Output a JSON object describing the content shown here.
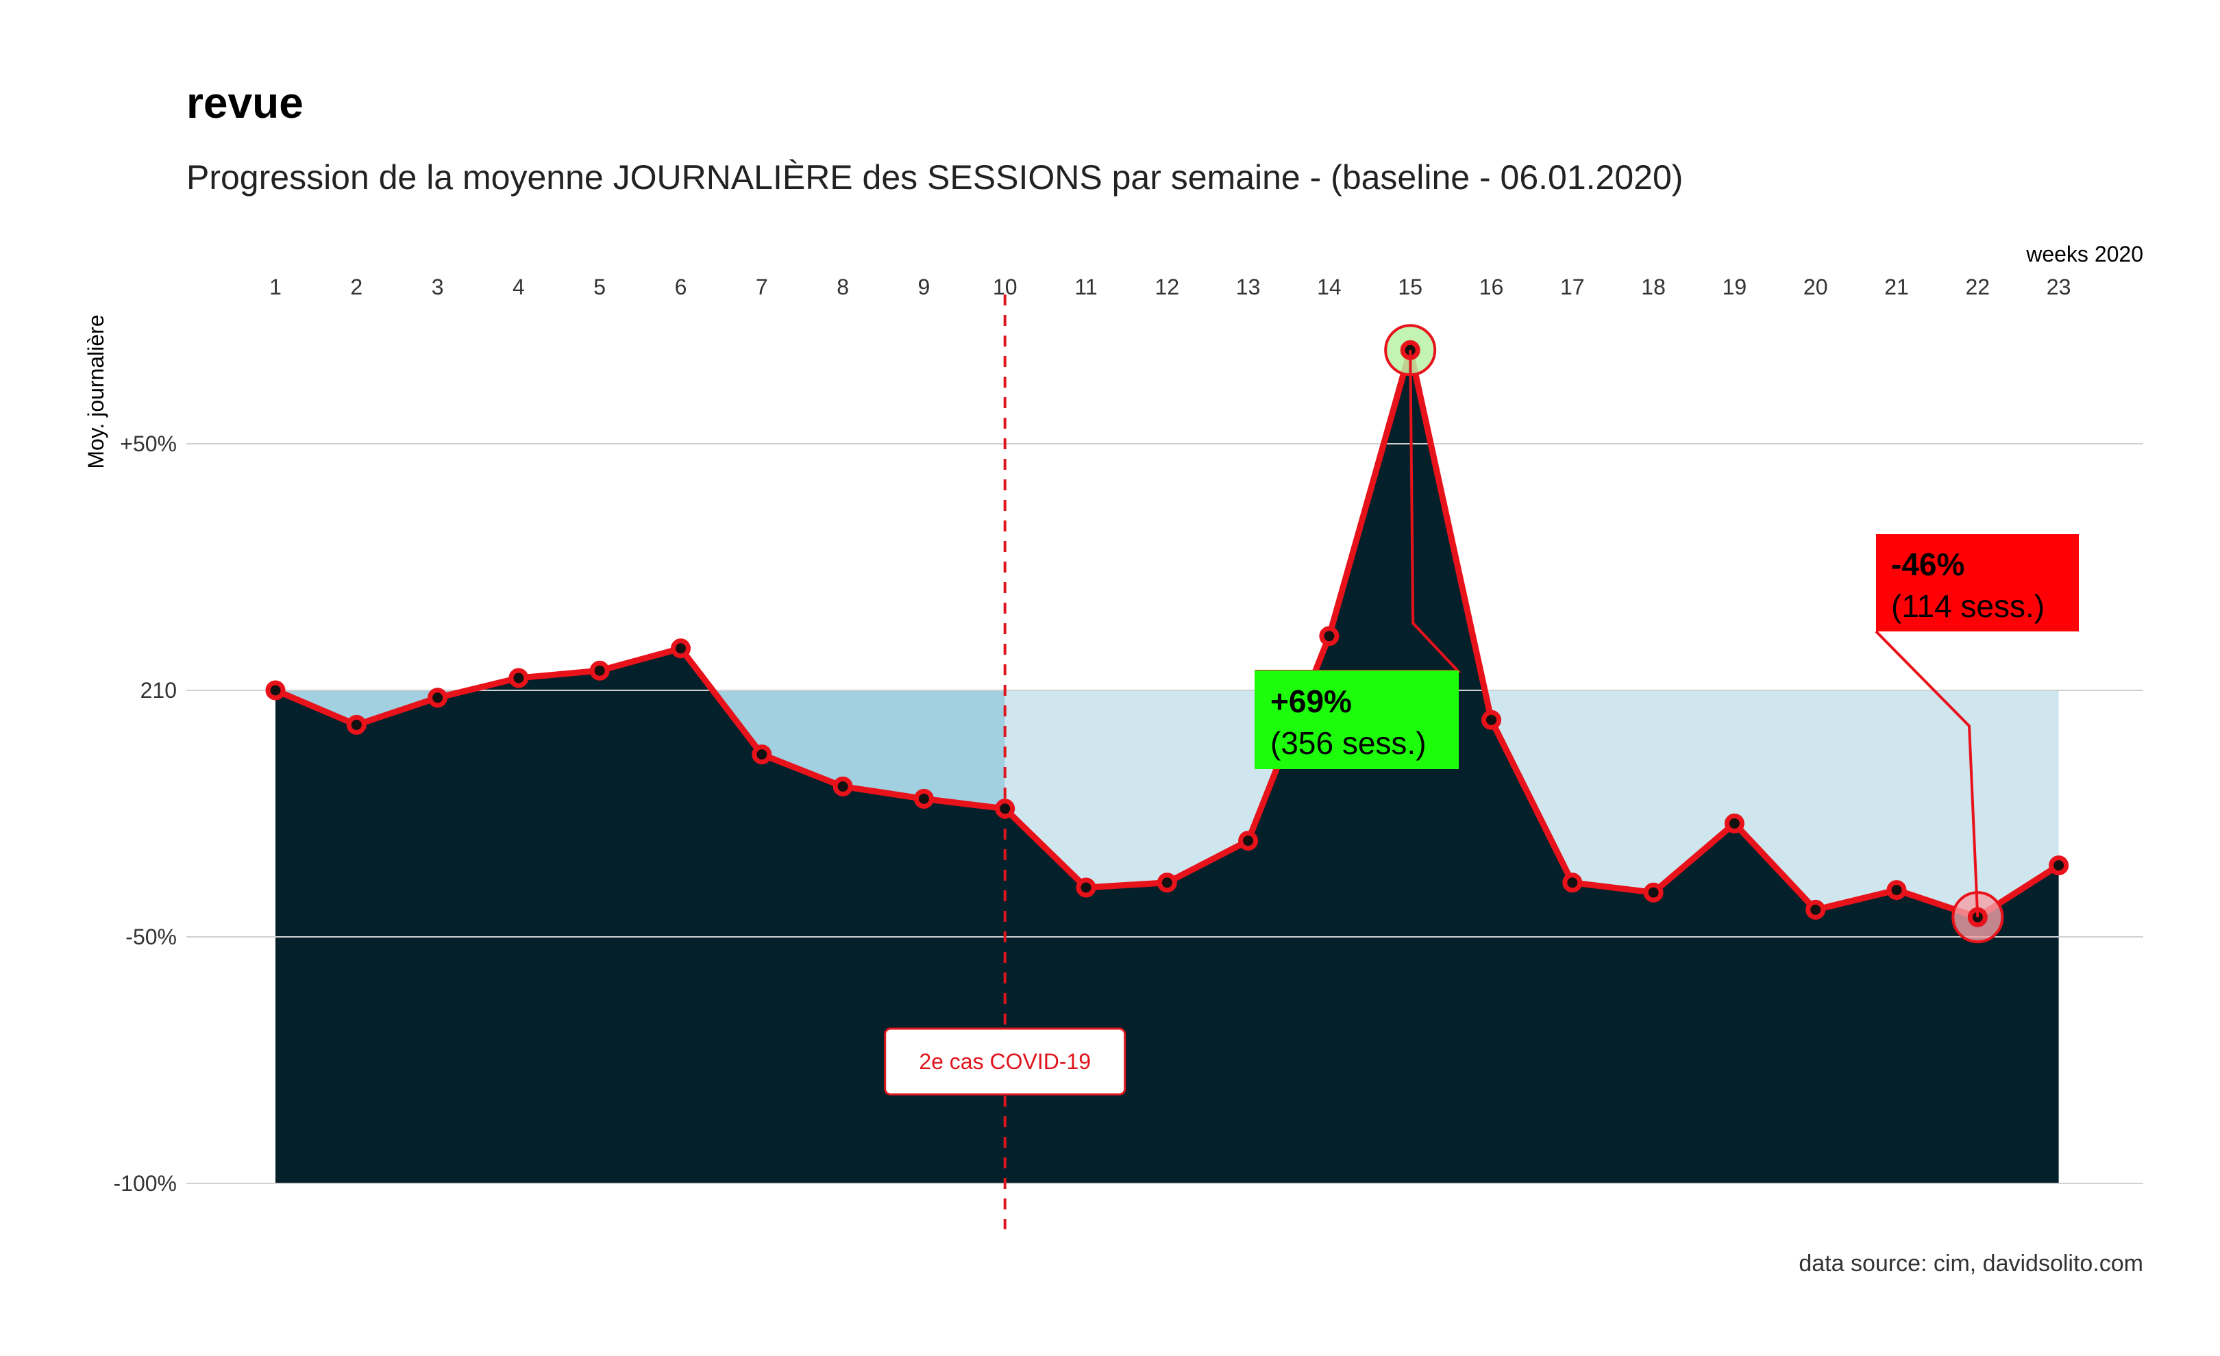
{
  "title": "revue",
  "subtitle": "Progression de la moyenne JOURNALIÈRE des SESSIONS par semaine - (baseline - 06.01.2020)",
  "caption": "data source: cim, davidsolito.com",
  "colors": {
    "line": "#e8121b",
    "area": "#04202a",
    "band_before": "#a2d0e0",
    "band_after": "#cfe6ee",
    "grid": "#d0d0d0",
    "highlight_max": "#b9f2a6",
    "highlight_min": "#f4a0a6",
    "label_max_bg": "#1dfc0b",
    "label_min_bg": "#fe0006",
    "event": "#e0141c"
  },
  "chart_data": {
    "type": "area",
    "title": "revue",
    "subtitle": "Progression de la moyenne JOURNALIÈRE des SESSIONS par semaine - (baseline - 06.01.2020)",
    "xlabel": "weeks 2020",
    "ylabel": "Moy. journalière",
    "x_axis_position": "top",
    "x": [
      1,
      2,
      3,
      4,
      5,
      6,
      7,
      8,
      9,
      10,
      11,
      12,
      13,
      14,
      15,
      16,
      17,
      18,
      19,
      20,
      21,
      22,
      23
    ],
    "x_ticks": [
      "1",
      "2",
      "3",
      "4",
      "5",
      "6",
      "7",
      "8",
      "9",
      "10",
      "11",
      "12",
      "13",
      "14",
      "15",
      "16",
      "17",
      "18",
      "19",
      "20",
      "21",
      "22",
      "23"
    ],
    "baseline_label": "210",
    "y_unit": "% vs baseline",
    "y_ticks": [
      {
        "value": 50,
        "label": "+50%"
      },
      {
        "value": 0,
        "label": "210"
      },
      {
        "value": -50,
        "label": "-50%"
      },
      {
        "value": -100,
        "label": "-100%"
      }
    ],
    "ylim": [
      -100,
      69
    ],
    "series": [
      {
        "values": [
          0,
          -7,
          -1.5,
          2.5,
          4,
          8.5,
          -13,
          -19.5,
          -22,
          -24,
          -40,
          -39,
          -30.5,
          11,
          69,
          -6,
          -39,
          -41,
          -27,
          -44.5,
          -40.5,
          -46,
          -35.5
        ]
      }
    ],
    "baseline_split_week": 10,
    "event": {
      "week": 10,
      "label": "2e cas COVID-19"
    },
    "annotations": [
      {
        "week": 15,
        "value": 69,
        "line1": "+69%",
        "line2": "(356 sess.)",
        "kind": "max"
      },
      {
        "week": 22,
        "value": -46,
        "line1": "-46%",
        "line2": "(114 sess.)",
        "kind": "min"
      }
    ],
    "grid": true,
    "legend": "none"
  }
}
